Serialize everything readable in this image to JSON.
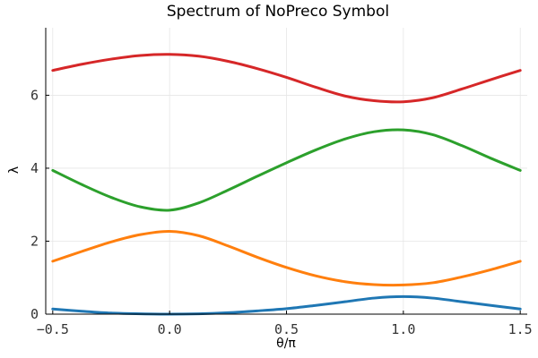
{
  "chart_data": {
    "type": "line",
    "title": "Spectrum of NoPreco Symbol",
    "xlabel": "θ/π",
    "ylabel": "λ",
    "xlim": [
      -0.53,
      1.53
    ],
    "ylim": [
      0,
      7.85
    ],
    "grid": true,
    "legend": "none",
    "xticks": [
      -0.5,
      0.0,
      0.5,
      1.0,
      1.5
    ],
    "xtick_labels": [
      "−0.5",
      "0.0",
      "0.5",
      "1.0",
      "1.5"
    ],
    "yticks": [
      0,
      2,
      4,
      6
    ],
    "ytick_labels": [
      "0",
      "2",
      "4",
      "6"
    ],
    "x": [
      -0.5,
      -0.375,
      -0.25,
      -0.125,
      0.0,
      0.125,
      0.25,
      0.375,
      0.5,
      0.625,
      0.75,
      0.875,
      1.0,
      1.125,
      1.25,
      1.375,
      1.5
    ],
    "series": [
      {
        "color": "#1f77b4",
        "values": [
          0.14,
          0.08,
          0.03,
          0.01,
          0.0,
          0.01,
          0.04,
          0.09,
          0.15,
          0.24,
          0.34,
          0.44,
          0.48,
          0.44,
          0.34,
          0.24,
          0.14
        ]
      },
      {
        "color": "#ff7f0e",
        "values": [
          1.45,
          1.72,
          1.98,
          2.18,
          2.27,
          2.15,
          1.87,
          1.56,
          1.28,
          1.05,
          0.89,
          0.81,
          0.8,
          0.86,
          1.02,
          1.22,
          1.45
        ]
      },
      {
        "color": "#2ca02c",
        "values": [
          3.94,
          3.55,
          3.2,
          2.94,
          2.85,
          3.05,
          3.4,
          3.78,
          4.15,
          4.5,
          4.8,
          5.0,
          5.05,
          4.92,
          4.62,
          4.27,
          3.94
        ]
      },
      {
        "color": "#d62728",
        "values": [
          6.68,
          6.85,
          6.99,
          7.09,
          7.12,
          7.07,
          6.93,
          6.73,
          6.49,
          6.22,
          5.98,
          5.85,
          5.82,
          5.93,
          6.17,
          6.43,
          6.68
        ]
      }
    ]
  }
}
